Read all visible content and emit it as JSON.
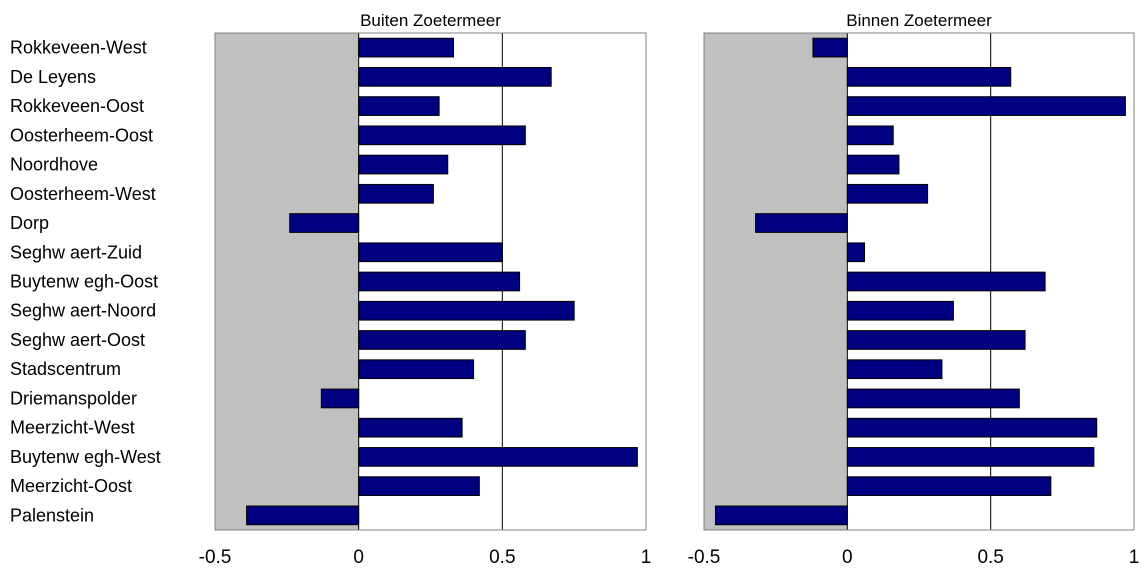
{
  "chart_data": {
    "type": "bar",
    "orientation": "horizontal",
    "categories": [
      "Rokkeveen-West",
      "De Leyens",
      "Rokkeveen-Oost",
      "Oosterheem-Oost",
      "Noordhove",
      "Oosterheem-West",
      "Dorp",
      "Seghw aert-Zuid",
      "Buytenw egh-Oost",
      "Seghw aert-Noord",
      "Seghw aert-Oost",
      "Stadscentrum",
      "Driemanspolder",
      "Meerzicht-West",
      "Buytenw egh-West",
      "Meerzicht-Oost",
      "Palenstein"
    ],
    "xlim": [
      -0.5,
      1
    ],
    "xticks": [
      "-0.5",
      "0",
      "0.5",
      "1"
    ],
    "xtick_values": [
      -0.5,
      0,
      0.5,
      1
    ],
    "vertical_gridlines_at": [
      0,
      0.5
    ],
    "negative_region_shaded": true,
    "bar_color": "#000080",
    "shade_color": "#C0C0C0",
    "panels": [
      {
        "title": "Buiten Zoetermeer",
        "values": [
          0.33,
          0.67,
          0.28,
          0.58,
          0.31,
          0.26,
          -0.24,
          0.5,
          0.56,
          0.75,
          0.58,
          0.4,
          -0.13,
          0.36,
          0.97,
          0.42,
          -0.39
        ]
      },
      {
        "title": "Binnen Zoetermeer",
        "values": [
          -0.12,
          0.57,
          0.97,
          0.16,
          0.18,
          0.28,
          -0.32,
          0.06,
          0.69,
          0.37,
          0.62,
          0.33,
          0.6,
          0.87,
          0.86,
          0.71,
          -0.46
        ]
      }
    ]
  }
}
